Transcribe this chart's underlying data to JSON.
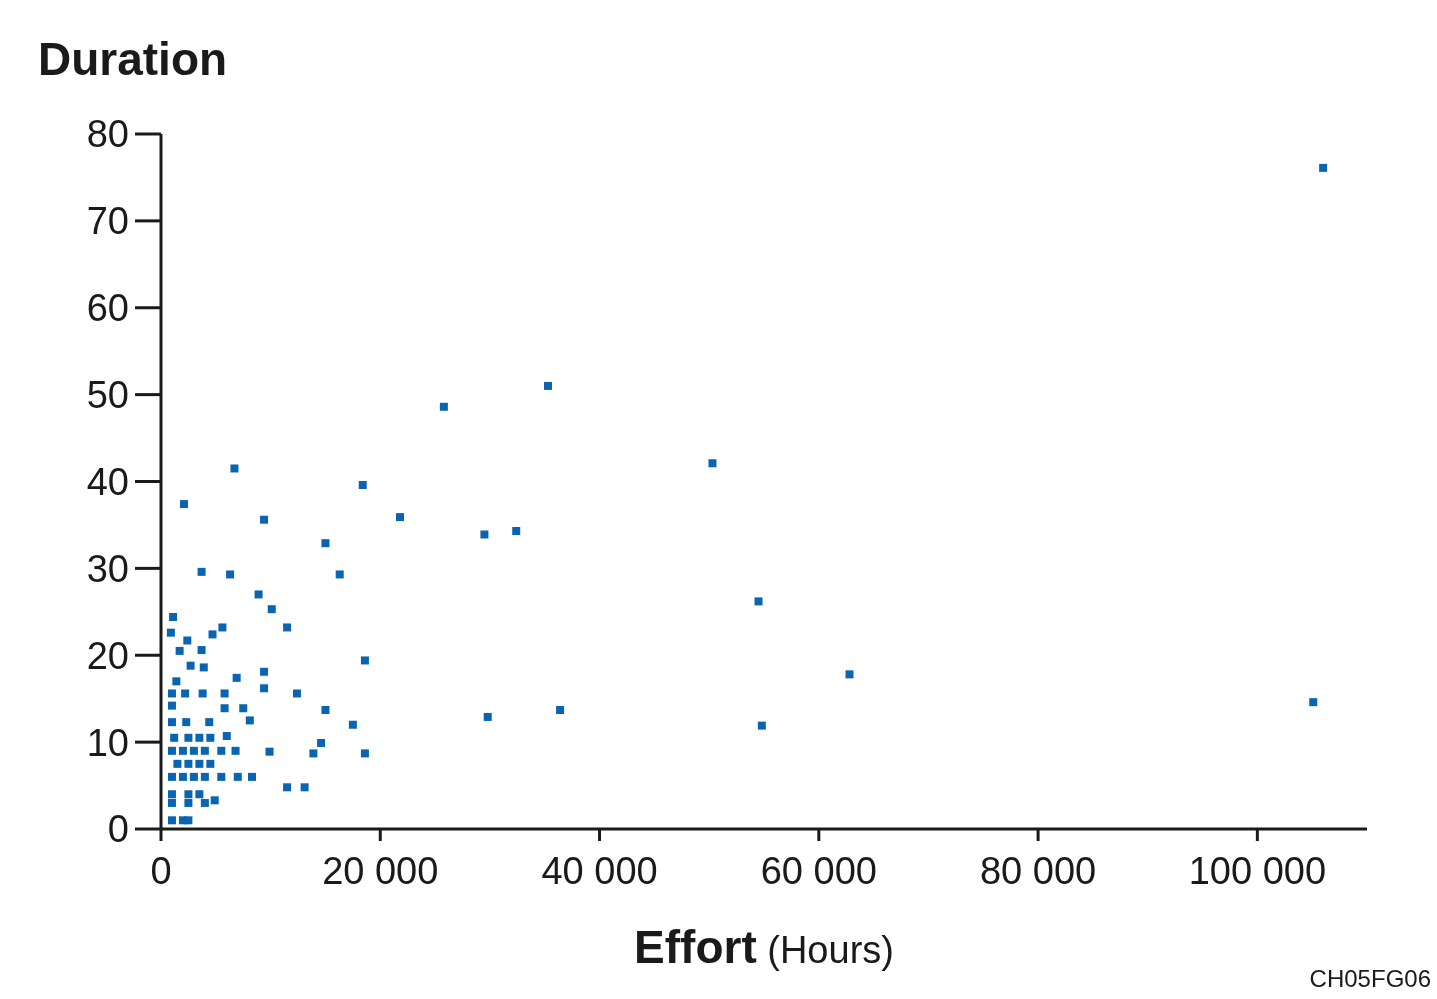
{
  "chart_data": {
    "type": "scatter",
    "ylabel": "Duration",
    "xlabel": "Effort (Hours)",
    "annotations": [
      "CH05FG06"
    ],
    "marker": "square",
    "grid": false,
    "legend": false,
    "xlim": [
      0,
      110000
    ],
    "ylim": [
      0,
      80
    ],
    "xticks": [
      0,
      {
        "value": 20000,
        "label": "20 000"
      },
      {
        "value": 40000,
        "label": "40 000"
      },
      {
        "value": 60000,
        "label": "60 000"
      },
      {
        "value": 80000,
        "label": "80 000"
      },
      {
        "value": 100000,
        "label": "100 000"
      }
    ],
    "yticks": [
      0,
      10,
      20,
      30,
      40,
      50,
      60,
      70,
      80
    ],
    "series": [
      {
        "color": "#0a64b0",
        "x": [
          106000,
          35300,
          25800,
          50300,
          6700,
          18400,
          2100,
          21800,
          9400,
          32400,
          29500,
          15000,
          3700,
          6300,
          16300,
          8900,
          54500,
          10100,
          1100,
          11500,
          5600,
          4700,
          900,
          2400,
          3700,
          1700,
          18600,
          2700,
          3900,
          9400,
          62800,
          6900,
          1400,
          9400,
          1000,
          2200,
          3800,
          5800,
          12400,
          105100,
          1000,
          5800,
          7500,
          15000,
          36400,
          29800,
          1000,
          2300,
          4400,
          8100,
          17500,
          54800,
          6000,
          1200,
          2500,
          3500,
          4500,
          1000,
          2000,
          3000,
          4000,
          5500,
          6800,
          9900,
          18600,
          13900,
          14600,
          1500,
          2500,
          3500,
          4500,
          1000,
          2000,
          3000,
          4000,
          5500,
          7000,
          8300,
          11500,
          13100,
          1000,
          2500,
          3500,
          1000,
          2500,
          4000,
          4900,
          1000,
          2000,
          2500
        ],
        "values": [
          76.1,
          51.0,
          48.6,
          42.1,
          41.5,
          39.6,
          37.4,
          35.9,
          35.6,
          34.3,
          33.9,
          32.9,
          29.6,
          29.3,
          29.3,
          27.0,
          26.2,
          25.3,
          24.4,
          23.2,
          23.2,
          22.4,
          22.6,
          21.7,
          20.6,
          20.5,
          19.4,
          18.8,
          18.6,
          18.1,
          17.8,
          17.4,
          17.0,
          16.2,
          15.6,
          15.6,
          15.6,
          15.6,
          15.6,
          14.6,
          14.2,
          13.9,
          13.9,
          13.7,
          13.7,
          12.9,
          12.3,
          12.3,
          12.3,
          12.5,
          12.0,
          11.9,
          10.7,
          10.5,
          10.5,
          10.5,
          10.5,
          9.0,
          9.0,
          9.0,
          9.0,
          9.0,
          9.0,
          8.9,
          8.7,
          8.7,
          9.9,
          7.5,
          7.5,
          7.5,
          7.5,
          6.0,
          6.0,
          6.0,
          6.0,
          6.0,
          6.0,
          6.0,
          4.8,
          4.8,
          4.0,
          4.0,
          4.0,
          3.0,
          3.0,
          3.0,
          3.3,
          1.0,
          1.0,
          1.0
        ]
      }
    ]
  }
}
